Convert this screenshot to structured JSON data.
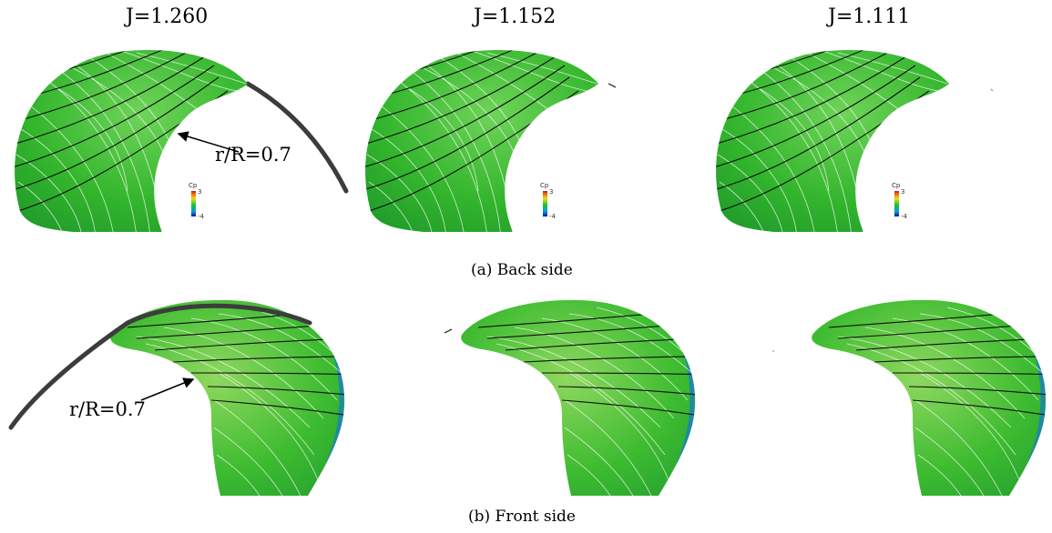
{
  "column_labels": [
    "J=1.260",
    "J=1.152",
    "J=1.111"
  ],
  "captions": {
    "back": "(a) Back side",
    "front": "(b) Front side"
  },
  "annotations": {
    "back": "r/R=0.7",
    "front": "r/R=0.7"
  },
  "colorbar": {
    "title": "Cp",
    "max": "3",
    "min": "-4"
  },
  "colors": {
    "surface": "#2fb52a",
    "streamline": "#ffffff",
    "section_line": "#111111",
    "tip_vortex": "#3c3c3c"
  }
}
